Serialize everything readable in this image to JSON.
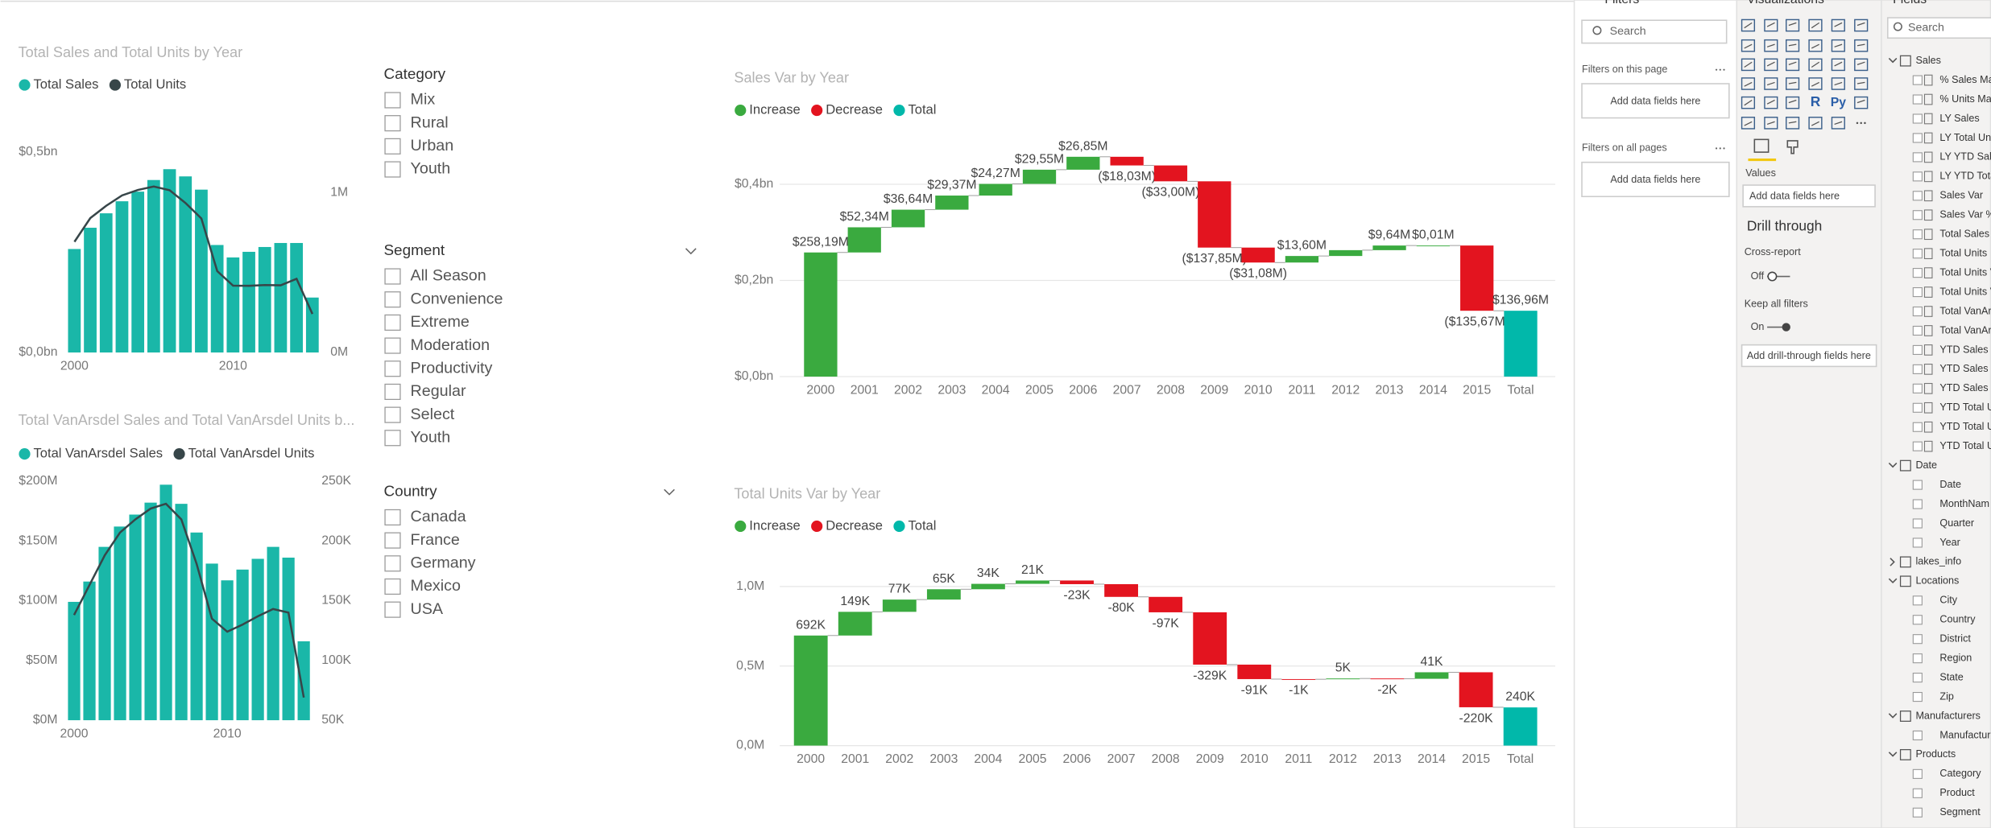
{
  "chart_data": [
    {
      "type": "combo",
      "title": "Total Sales and Total Units by Year",
      "x": [
        2000,
        2001,
        2002,
        2003,
        2004,
        2005,
        2006,
        2007,
        2008,
        2009,
        2010,
        2011,
        2012,
        2013,
        2014,
        2015
      ],
      "xlim": [
        1999.5,
        2015.5
      ],
      "xticks": [
        2000,
        2010
      ],
      "series": [
        {
          "name": "Total Sales",
          "color": "#1ab7a8",
          "kind": "bar",
          "values": [
            0.258,
            0.311,
            0.347,
            0.377,
            0.401,
            0.43,
            0.457,
            0.439,
            0.406,
            0.268,
            0.237,
            0.251,
            0.263,
            0.273,
            0.273,
            0.137
          ]
        },
        {
          "name": "Total Units",
          "color": "#374649",
          "kind": "line",
          "axis": "y2",
          "values": [
            692000,
            841000,
            918000,
            983000,
            1017000,
            1038000,
            1015000,
            935000,
            838000,
            509000,
            418000,
            417000,
            422000,
            420000,
            461000,
            241000
          ]
        }
      ],
      "ylim": [
        0,
        0.55
      ],
      "yticks": [
        {
          "value": 0,
          "label": "$0,0bn"
        },
        {
          "value": 0.5,
          "label": "$0,5bn"
        }
      ],
      "y2lim": [
        0,
        1380000
      ],
      "y2ticks": [
        {
          "value": 0,
          "label": "0M"
        },
        {
          "value": 1000000,
          "label": "1M"
        }
      ]
    },
    {
      "type": "combo",
      "title": "Total VanArsdel Sales and Total VanArsdel Units b...",
      "x": [
        2000,
        2001,
        2002,
        2003,
        2004,
        2005,
        2006,
        2007,
        2008,
        2009,
        2010,
        2011,
        2012,
        2013,
        2014,
        2015
      ],
      "xlim": [
        1999.5,
        2015.5
      ],
      "xticks": [
        2000,
        2010
      ],
      "series": [
        {
          "name": "Total VanArsdel Sales",
          "color": "#1ab7a8",
          "kind": "bar",
          "values": [
            99,
            116,
            145,
            162,
            172,
            182,
            197,
            181,
            157,
            131,
            117,
            126,
            135,
            145,
            136,
            66
          ]
        },
        {
          "name": "Total VanArsdel Units",
          "color": "#374649",
          "kind": "line",
          "axis": "y2",
          "values": [
            138000,
            163000,
            188000,
            207000,
            218000,
            227000,
            231000,
            218000,
            181000,
            135000,
            124000,
            130000,
            137000,
            143000,
            140000,
            69000
          ]
        }
      ],
      "ylim": [
        0,
        210
      ],
      "yticks": [
        {
          "value": 0,
          "label": "$0M"
        },
        {
          "value": 50,
          "label": "$50M"
        },
        {
          "value": 100,
          "label": "$100M"
        },
        {
          "value": 150,
          "label": "$150M"
        },
        {
          "value": 200,
          "label": "$200M"
        }
      ],
      "y2lim": [
        50000,
        260000
      ],
      "y2ticks": [
        {
          "value": 50000,
          "label": "50K"
        },
        {
          "value": 100000,
          "label": "100K"
        },
        {
          "value": 150000,
          "label": "150K"
        },
        {
          "value": 200000,
          "label": "200K"
        },
        {
          "value": 250000,
          "label": "250K"
        }
      ]
    },
    {
      "type": "waterfall",
      "title": "Sales Var by Year",
      "legend": [
        {
          "name": "Increase",
          "color": "#3aaa3f"
        },
        {
          "name": "Decrease",
          "color": "#e3141f"
        },
        {
          "name": "Total",
          "color": "#01b8aa"
        }
      ],
      "total_last": true,
      "categories": [
        "2000",
        "2001",
        "2002",
        "2003",
        "2004",
        "2005",
        "2006",
        "2007",
        "2008",
        "2009",
        "2010",
        "2011",
        "2012",
        "2013",
        "2014",
        "2015",
        "Total"
      ],
      "values": [
        0.25819,
        0.05234,
        0.03664,
        0.02937,
        0.02427,
        0.02955,
        0.02685,
        -0.01803,
        -0.033,
        -0.13785,
        -0.03108,
        0.0136,
        0.01213,
        0.00964,
        1e-05,
        -0.13567,
        0.13696
      ],
      "value_labels": [
        "$258,19M",
        "$52,34M",
        "$36,64M",
        "$29,37M",
        "$24,27M",
        "$29,55M",
        "$26,85M",
        "($18,03M)",
        "($33,00M)",
        "($137,85M)",
        "($31,08M)",
        "$13,60M",
        null,
        "$9,64M",
        "$0,01M",
        "($135,67M)",
        "$136,96M"
      ],
      "ylim": [
        0,
        0.48
      ],
      "yticks": [
        {
          "value": 0,
          "label": "$0,0bn"
        },
        {
          "value": 0.2,
          "label": "$0,2bn"
        },
        {
          "value": 0.4,
          "label": "$0,4bn"
        }
      ],
      "grid": true
    },
    {
      "type": "waterfall",
      "title": "Total Units Var by Year",
      "legend": [
        {
          "name": "Increase",
          "color": "#3aaa3f"
        },
        {
          "name": "Decrease",
          "color": "#e3141f"
        },
        {
          "name": "Total",
          "color": "#01b8aa"
        }
      ],
      "total_last": true,
      "categories": [
        "2000",
        "2001",
        "2002",
        "2003",
        "2004",
        "2005",
        "2006",
        "2007",
        "2008",
        "2009",
        "2010",
        "2011",
        "2012",
        "2013",
        "2014",
        "2015",
        "Total"
      ],
      "values": [
        692000,
        149000,
        77000,
        65000,
        34000,
        21000,
        -23000,
        -80000,
        -97000,
        -329000,
        -91000,
        -1000,
        5000,
        -2000,
        41000,
        -220000,
        240000
      ],
      "value_labels": [
        "692K",
        "149K",
        "77K",
        "65K",
        "34K",
        "21K",
        "-23K",
        "-80K",
        "-97K",
        "-329K",
        "-91K",
        "-1K",
        "5K",
        "-2K",
        "41K",
        "-220K",
        "240K"
      ],
      "ylim": [
        0,
        1180000
      ],
      "yticks": [
        {
          "value": 0,
          "label": "0,0M"
        },
        {
          "value": 500000,
          "label": "0,5M"
        },
        {
          "value": 1000000,
          "label": "1,0M"
        }
      ],
      "grid": true
    }
  ],
  "slicers": [
    {
      "title": "Category",
      "items": [
        "Mix",
        "Rural",
        "Urban",
        "Youth"
      ]
    },
    {
      "title": "Segment",
      "items": [
        "All Season",
        "Convenience",
        "Extreme",
        "Moderation",
        "Productivity",
        "Regular",
        "Select",
        "Youth"
      ]
    },
    {
      "title": "Country",
      "items": [
        "Canada",
        "France",
        "Germany",
        "Mexico",
        "USA"
      ]
    }
  ],
  "filters_pane": {
    "title": "Filters",
    "search": "Search",
    "page_label": "Filters on this page",
    "page_drop": "Add data fields here",
    "all_label": "Filters on all pages",
    "all_drop": "Add data fields here"
  },
  "visualizations_pane": {
    "title": "Visualizations",
    "icons": [
      "R",
      "Py"
    ],
    "values_label": "Values",
    "values_drop": "Add data fields here",
    "drill_title": "Drill through",
    "cross_report": "Cross-report",
    "cross_state": "Off",
    "keep_filters": "Keep all filters",
    "keep_state": "On",
    "drill_drop": "Add drill-through fields here"
  },
  "fields_pane": {
    "title": "Fields",
    "search": "Search",
    "tables": [
      {
        "name": "Sales",
        "fields": [
          "% Sales Mar",
          "% Units Mar",
          "LY Sales",
          "LY Total Uni",
          "LY YTD Sale",
          "LY YTD Tota",
          "Sales Var",
          "Sales Var %",
          "Total Sales",
          "Total Units",
          "Total Units V",
          "Total Units V",
          "Total VanAr",
          "Total VanAr",
          "YTD Sales",
          "YTD Sales V",
          "YTD Sales V",
          "YTD Total U",
          "YTD Total U",
          "YTD Total U"
        ]
      },
      {
        "name": "Date",
        "fields": [
          "Date",
          "MonthNam",
          "Quarter",
          "Year"
        ]
      },
      {
        "name": "lakes_info",
        "fields": []
      },
      {
        "name": "Locations",
        "fields": [
          "City",
          "Country",
          "District",
          "Region",
          "State",
          "Zip"
        ]
      },
      {
        "name": "Manufacturers",
        "fields": [
          "Manufactur"
        ]
      },
      {
        "name": "Products",
        "fields": [
          "Category",
          "Product",
          "Segment"
        ]
      }
    ]
  }
}
